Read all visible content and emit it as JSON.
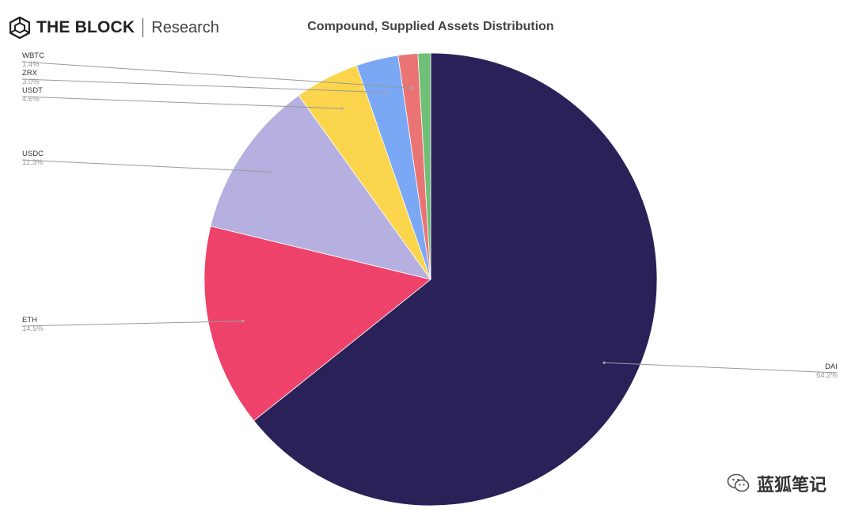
{
  "brand": {
    "name": "THE BLOCK",
    "sub": "Research"
  },
  "watermark": {
    "text": "蓝狐笔记"
  },
  "chart_data": {
    "type": "pie",
    "title": "Compound, Supplied Assets Distribution",
    "slices": [
      {
        "label": "DAI",
        "value": 64.2,
        "value_label": "64.2%",
        "color": "#2b2159"
      },
      {
        "label": "ETH",
        "value": 14.5,
        "value_label": "14.5%",
        "color": "#ee426b"
      },
      {
        "label": "USDC",
        "value": 11.3,
        "value_label": "11.3%",
        "color": "#b5b0e0"
      },
      {
        "label": "USDT",
        "value": 4.6,
        "value_label": "4.6%",
        "color": "#fbd54b"
      },
      {
        "label": "ZRX",
        "value": 3.0,
        "value_label": "3.0%",
        "color": "#7aa8f5"
      },
      {
        "label": "WBTC",
        "value": 1.4,
        "value_label": "1.4%",
        "color": "#ea7474"
      },
      {
        "label": "",
        "value": 0.9,
        "value_label": "",
        "color": "#6fbf77"
      }
    ]
  }
}
